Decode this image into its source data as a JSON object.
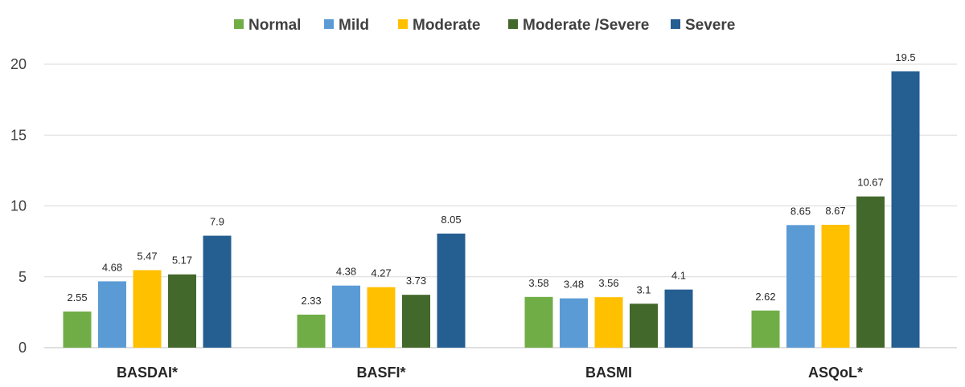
{
  "chart_data": {
    "type": "bar",
    "categories": [
      "BASDAI*",
      "BASFI*",
      "BASMI",
      "ASQoL*"
    ],
    "series": [
      {
        "name": "Normal",
        "color": "#70ad47",
        "values": [
          2.55,
          2.33,
          3.58,
          2.62
        ]
      },
      {
        "name": "Mild",
        "color": "#5b9bd5",
        "values": [
          4.68,
          4.38,
          3.48,
          8.65
        ]
      },
      {
        "name": "Moderate",
        "color": "#ffc000",
        "values": [
          5.47,
          4.27,
          3.56,
          8.67
        ]
      },
      {
        "name": "Moderate /Severe",
        "color": "#43682b",
        "values": [
          5.17,
          3.73,
          3.1,
          10.67
        ]
      },
      {
        "name": "Severe",
        "color": "#255e91",
        "values": [
          7.9,
          8.05,
          4.1,
          19.5
        ]
      }
    ],
    "y_ticks": [
      "0",
      "5",
      "10",
      "15",
      "20"
    ],
    "ylim": [
      0,
      20
    ],
    "grid": true,
    "legend_position": "top-center",
    "title": "",
    "xlabel": "",
    "ylabel": ""
  }
}
